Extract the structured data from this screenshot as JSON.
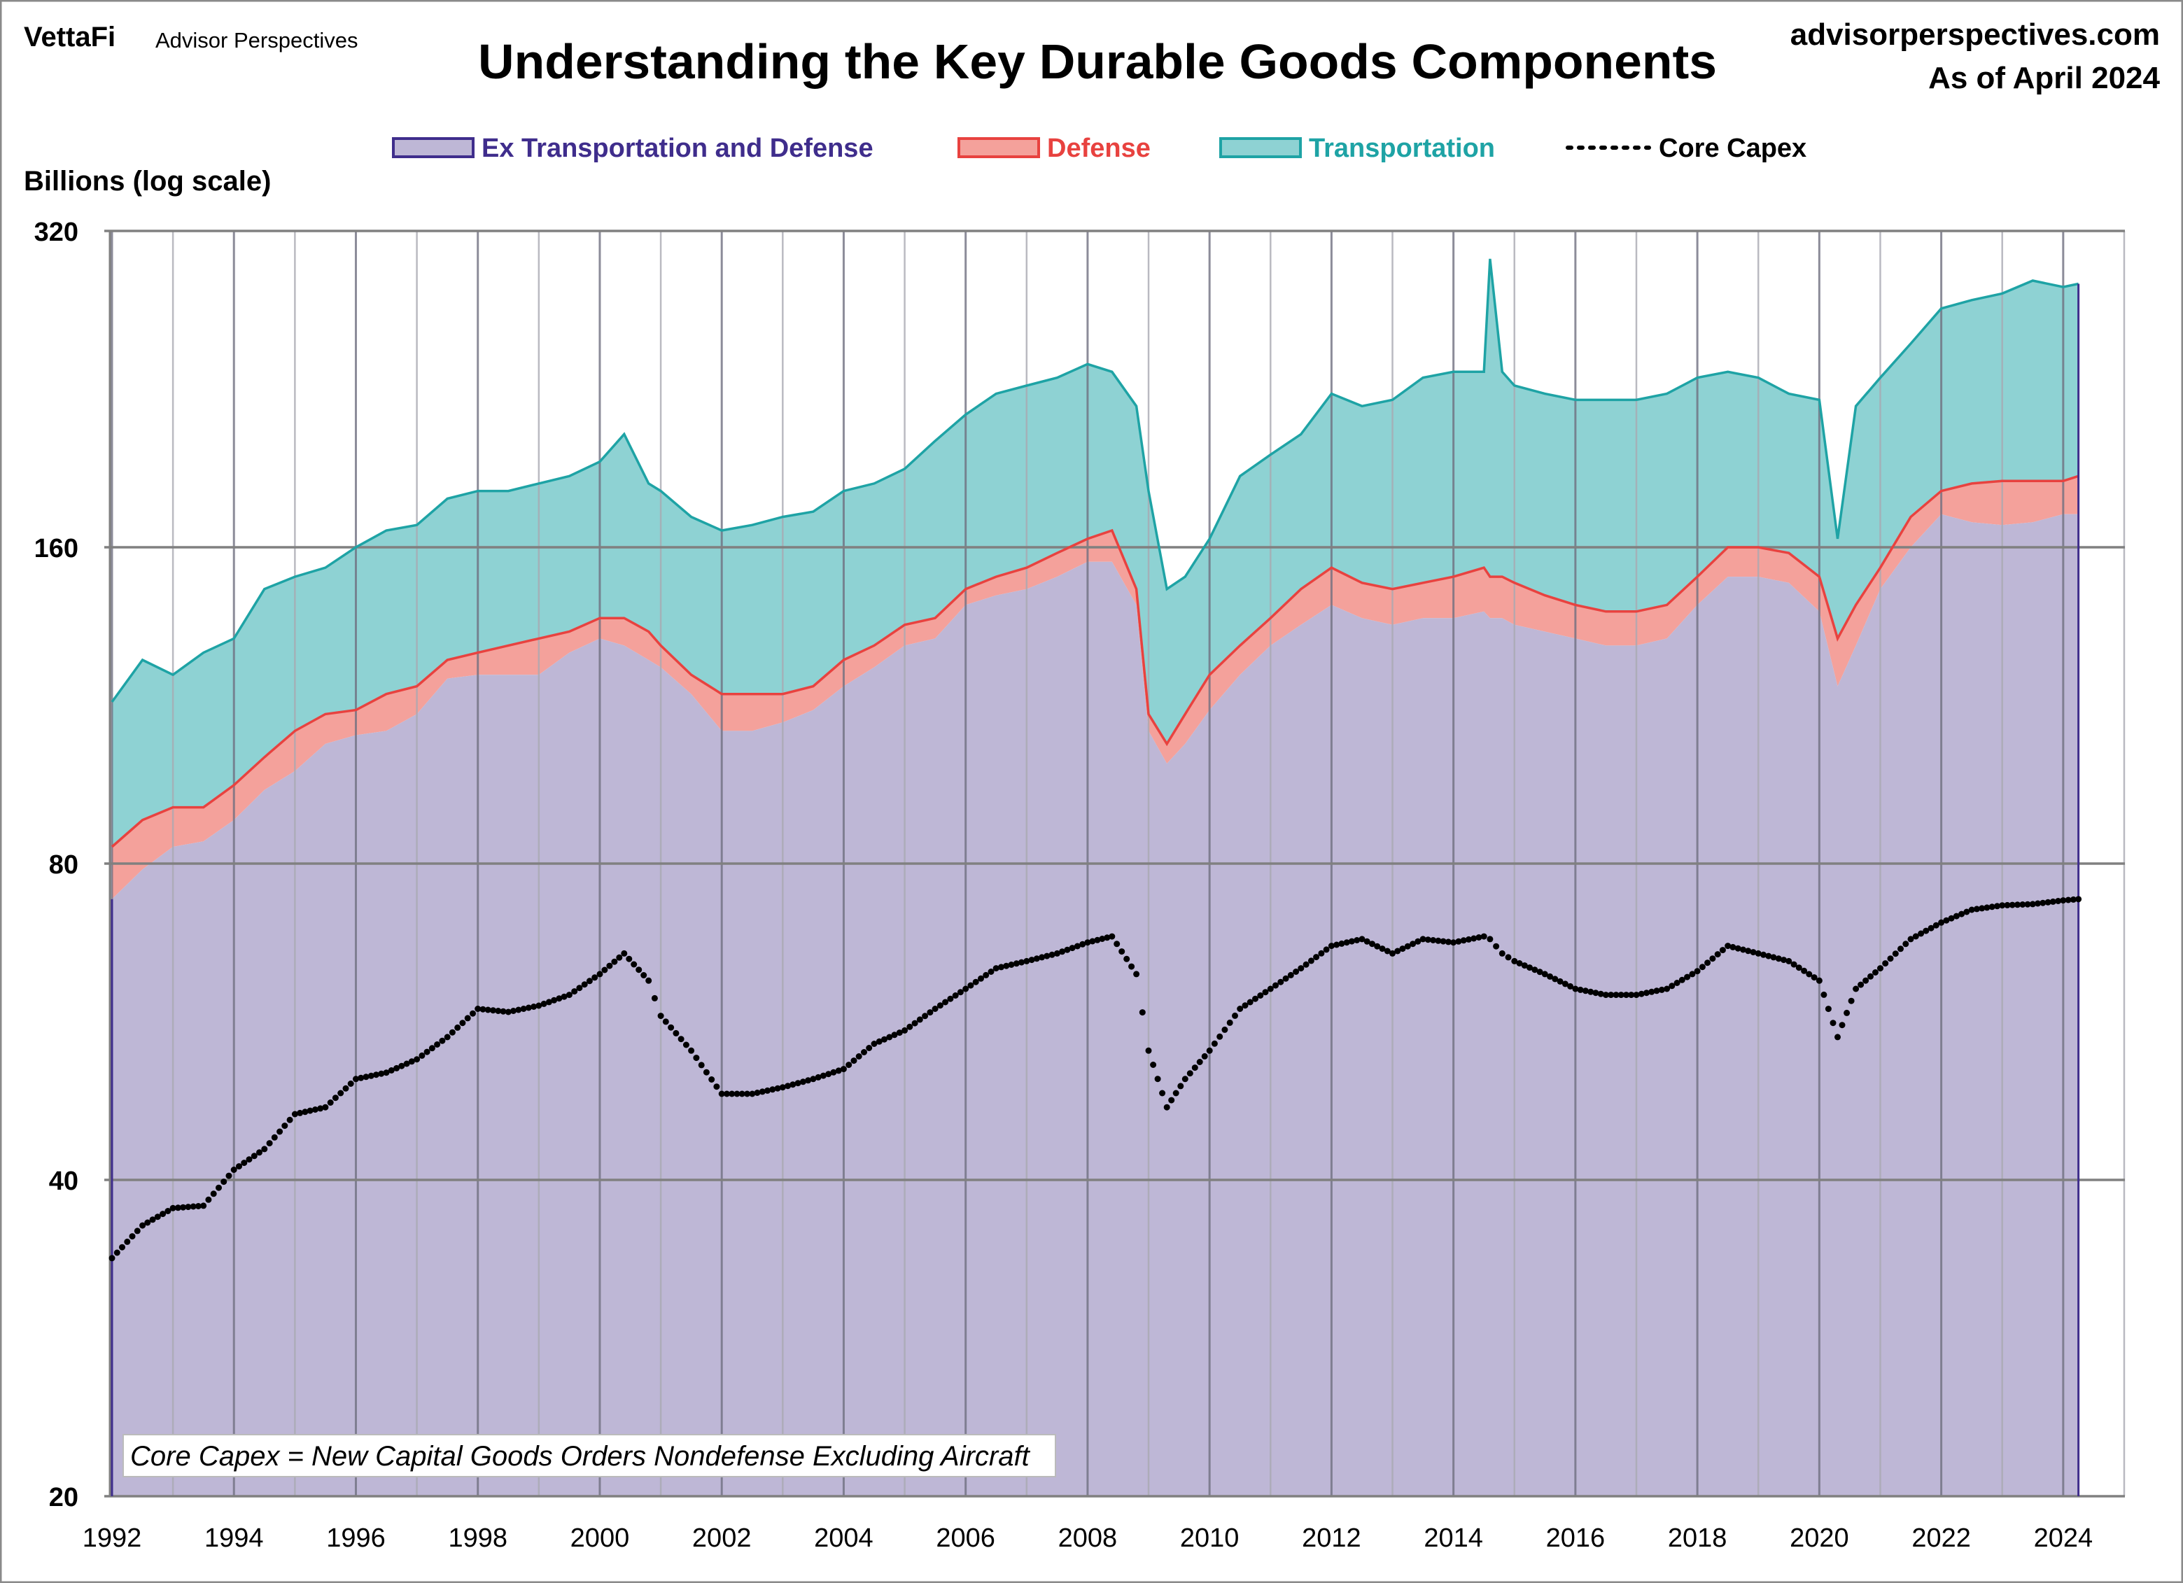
{
  "header": {
    "brand": "VettaFi",
    "brand_sub": "Advisor Perspectives",
    "site": "advisorperspectives.com",
    "as_of": "As of April 2024"
  },
  "chart_data": {
    "type": "area",
    "stacked": true,
    "title": "Understanding the Key Durable Goods Components",
    "ylabel": "Billions (log scale)",
    "xlabel": "",
    "yscale": "log",
    "ylim": [
      20,
      320
    ],
    "xlim": [
      1992,
      2025
    ],
    "y_ticks": [
      "320",
      "160",
      "80",
      "40",
      "20"
    ],
    "y_tick_values": [
      320,
      160,
      80,
      40,
      20
    ],
    "x_ticks": [
      "1992",
      "1994",
      "1996",
      "1998",
      "2000",
      "2002",
      "2004",
      "2006",
      "2008",
      "2010",
      "2012",
      "2014",
      "2016",
      "2018",
      "2020",
      "2022",
      "2024"
    ],
    "grid": true,
    "legend_position": "top",
    "annotation": "Core Capex = New Capital Goods Orders Nondefense Excluding Aircraft",
    "colors": {
      "ex_td_fill": "#BEB7D6",
      "ex_td_line": "#3F2D8C",
      "defense_fill": "#F4A19B",
      "defense_line": "#E8423F",
      "transport_fill": "#8ED2D3",
      "transport_line": "#1EA3A5",
      "core": "#000000"
    },
    "series_names": [
      "Ex Transportation and Defense",
      "Defense",
      "Transportation",
      "Core Capex"
    ],
    "x": [
      1992.0,
      1992.5,
      1993.0,
      1993.5,
      1994.0,
      1994.5,
      1995.0,
      1995.5,
      1996.0,
      1996.5,
      1997.0,
      1997.5,
      1998.0,
      1998.5,
      1999.0,
      1999.5,
      2000.0,
      2000.4,
      2000.8,
      2001.0,
      2001.5,
      2002.0,
      2002.5,
      2003.0,
      2003.5,
      2004.0,
      2004.5,
      2005.0,
      2005.5,
      2006.0,
      2006.5,
      2007.0,
      2007.5,
      2008.0,
      2008.4,
      2008.8,
      2009.0,
      2009.3,
      2009.6,
      2010.0,
      2010.5,
      2011.0,
      2011.5,
      2012.0,
      2012.5,
      2013.0,
      2013.5,
      2014.0,
      2014.5,
      2014.6,
      2014.8,
      2015.0,
      2015.5,
      2016.0,
      2016.5,
      2017.0,
      2017.5,
      2018.0,
      2018.5,
      2019.0,
      2019.5,
      2020.0,
      2020.3,
      2020.6,
      2021.0,
      2021.5,
      2022.0,
      2022.5,
      2023.0,
      2023.5,
      2024.0,
      2024.25
    ],
    "series": [
      {
        "name": "Ex Transportation and Defense",
        "values": [
          74,
          79,
          83,
          84,
          88,
          94,
          98,
          104,
          106,
          107,
          111,
          120,
          121,
          121,
          121,
          127,
          131,
          129,
          125,
          123,
          116,
          107,
          107,
          109,
          112,
          118,
          123,
          129,
          131,
          141,
          144,
          146,
          150,
          155,
          155,
          141,
          107,
          99.6,
          104,
          112,
          121,
          129,
          135,
          141,
          137,
          135,
          137,
          137,
          139,
          137,
          137,
          135,
          133,
          131,
          129,
          129,
          131,
          141,
          150,
          150,
          148,
          139,
          118,
          129,
          146,
          160,
          172,
          169,
          168,
          169,
          172,
          172
        ]
      },
      {
        "name": "Defense",
        "values": [
          9,
          9,
          7.5,
          6.5,
          7,
          7,
          9,
          7,
          6,
          9,
          7,
          5,
          6,
          8,
          10,
          6,
          6,
          8,
          8,
          6,
          5,
          9,
          9,
          7,
          6,
          7,
          6,
          6,
          6,
          5,
          6,
          7,
          8,
          8,
          11,
          5,
          4,
          4.4,
          7,
          9,
          8,
          8,
          11,
          12,
          11,
          11,
          11,
          13,
          14,
          13,
          13,
          13,
          11,
          10,
          10,
          10,
          10,
          9,
          10,
          10,
          10,
          11,
          13,
          12,
          7,
          11,
          9,
          15,
          17,
          16,
          13,
          15
        ]
      },
      {
        "name": "Transportation",
        "values": [
          31,
          37,
          30.5,
          36.5,
          36,
          45,
          43,
          42,
          48,
          50,
          50,
          53,
          54,
          52,
          53,
          54,
          56,
          68,
          51,
          52,
          50,
          50,
          52,
          55,
          55,
          56,
          55,
          55,
          65,
          68,
          74,
          75,
          74,
          76,
          69,
          72,
          70,
          42,
          39,
          42,
          58,
          59,
          59,
          71,
          70,
          75,
          84,
          85,
          82,
          151,
          85,
          80,
          80,
          80,
          82,
          82,
          83,
          82,
          75,
          72,
          66,
          71,
          32,
          77,
          79,
          79,
          89,
          91,
          94,
          102,
          98,
          98
        ]
      },
      {
        "name": "Core Capex",
        "values": [
          33.7,
          36.2,
          37.6,
          37.8,
          40.9,
          42.8,
          46.2,
          46.9,
          49.9,
          50.6,
          52.1,
          54.7,
          58.2,
          57.8,
          58.6,
          60,
          62.8,
          65.7,
          61.9,
          57.3,
          53.1,
          48.3,
          48.3,
          49,
          49.9,
          51,
          53.9,
          55.5,
          58.2,
          60.8,
          63.6,
          64.6,
          65.7,
          67.3,
          68.2,
          62.8,
          53.1,
          46.9,
          49.9,
          53.1,
          58.2,
          60.8,
          63.6,
          66.8,
          67.8,
          65.7,
          67.8,
          67.3,
          68.2,
          67.8,
          65.7,
          64.6,
          62.8,
          60.8,
          60,
          60,
          60.8,
          63.2,
          66.8,
          65.7,
          64.6,
          61.9,
          54.7,
          60.8,
          63.6,
          67.8,
          70.3,
          72.3,
          73,
          73.2,
          73.8,
          74
        ]
      }
    ]
  }
}
